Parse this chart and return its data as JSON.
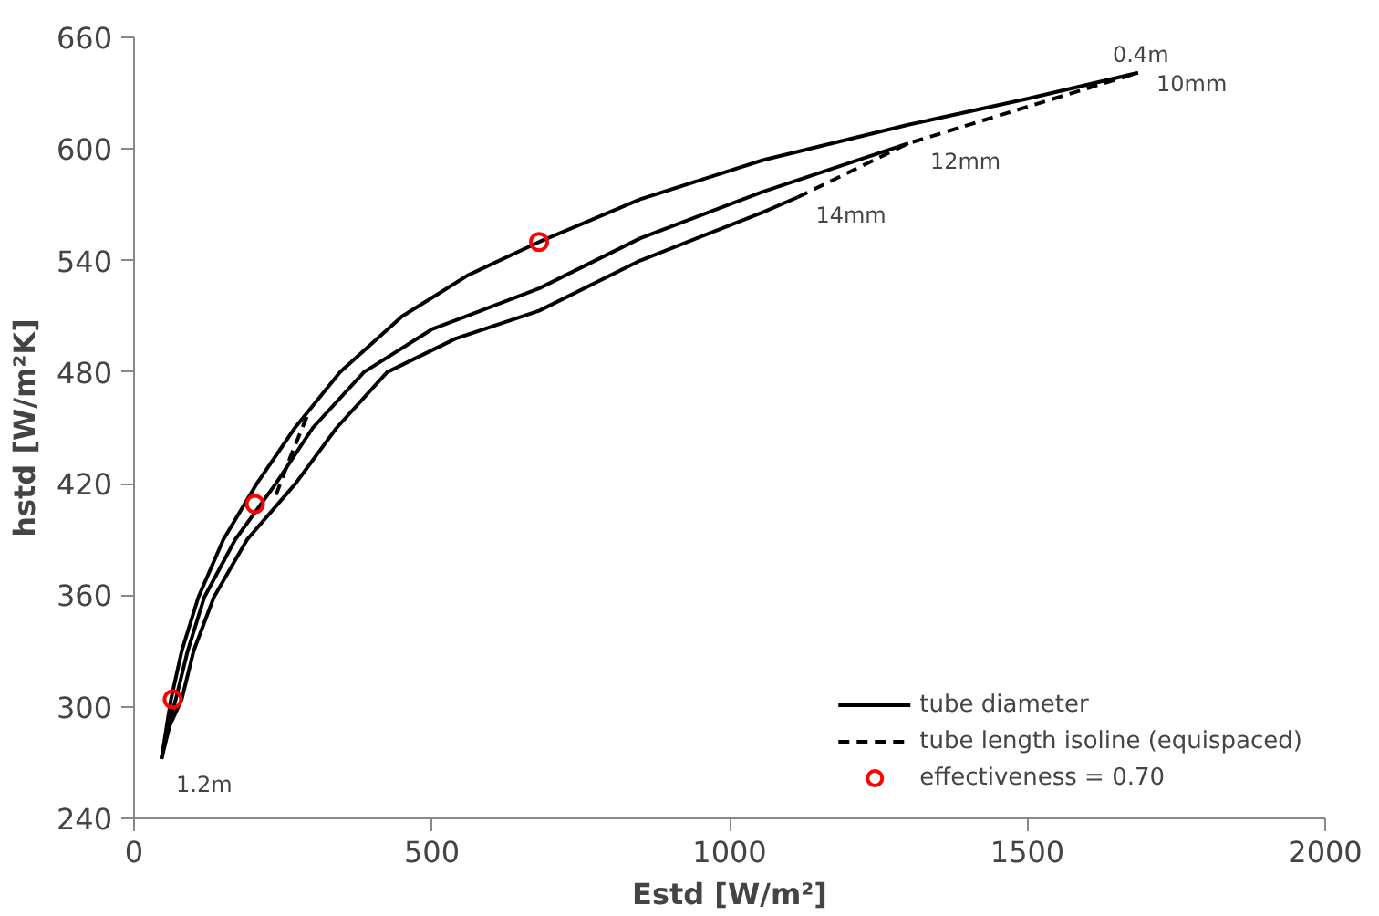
{
  "chart_data": {
    "type": "line",
    "xlabel": "Estd [W/m²]",
    "ylabel": "hstd [W/m²K]",
    "xlim": [
      0,
      2000
    ],
    "xticks": [
      0,
      500,
      1000,
      1500,
      2000
    ],
    "ylim": [
      240,
      660
    ],
    "yticks": [
      240,
      300,
      360,
      420,
      480,
      540,
      600,
      660
    ],
    "grid": false,
    "legend": "bottom right",
    "marker": "none",
    "series": [
      {
        "name": "tube diameter",
        "color": "#000000",
        "line_style": "solid",
        "x": [
          46,
          55,
          62,
          80,
          108,
          150,
          206,
          270,
          346,
          450,
          560,
          680,
          850,
          1056,
          1300,
          1500,
          1686
        ],
        "values": [
          272,
          290,
          304,
          330,
          359,
          390,
          420,
          450,
          480,
          510,
          532,
          550,
          573,
          594,
          613,
          627,
          641
        ]
      },
      {
        "color": "#000000",
        "line_style": "solid",
        "x": [
          46,
          58,
          70,
          90,
          118,
          170,
          238,
          300,
          386,
          500,
          680,
          850,
          1056,
          1300
        ],
        "values": [
          272,
          290,
          304,
          330,
          359,
          390,
          420,
          450,
          480,
          503,
          525,
          552,
          577,
          603
        ]
      },
      {
        "color": "#000000",
        "line_style": "solid",
        "x": [
          46,
          60,
          80,
          100,
          134,
          190,
          271,
          340,
          425,
          540,
          680,
          850,
          1056,
          1114
        ],
        "values": [
          272,
          290,
          304,
          330,
          359,
          390,
          420,
          450,
          480,
          498,
          513,
          540,
          566,
          574
        ]
      },
      {
        "name": "tube length isoline (equispaced)",
        "color": "#000000",
        "line_style": "dashed",
        "x": [
          1114,
          1300,
          1686
        ],
        "values": [
          574,
          603,
          641
        ]
      },
      {
        "color": "#000000",
        "line_style": "dashed",
        "x": [
          290,
          262,
          236
        ],
        "values": [
          456,
          434,
          412
        ]
      },
      {
        "name": "effectiveness = 0.70",
        "type": "scatter",
        "marker": "circle",
        "color": "#ff0000",
        "x": [
          65,
          203,
          680
        ],
        "values": [
          304,
          409,
          550
        ]
      }
    ],
    "annotations": [
      {
        "text": "0.4m",
        "x": 1686,
        "y": 641
      },
      {
        "text": "10mm",
        "x": 1686,
        "y": 641
      },
      {
        "text": "12mm",
        "x": 1300,
        "y": 603
      },
      {
        "text": "14mm",
        "x": 1114,
        "y": 574
      },
      {
        "text": "1.2m",
        "x": 46,
        "y": 272
      }
    ]
  }
}
